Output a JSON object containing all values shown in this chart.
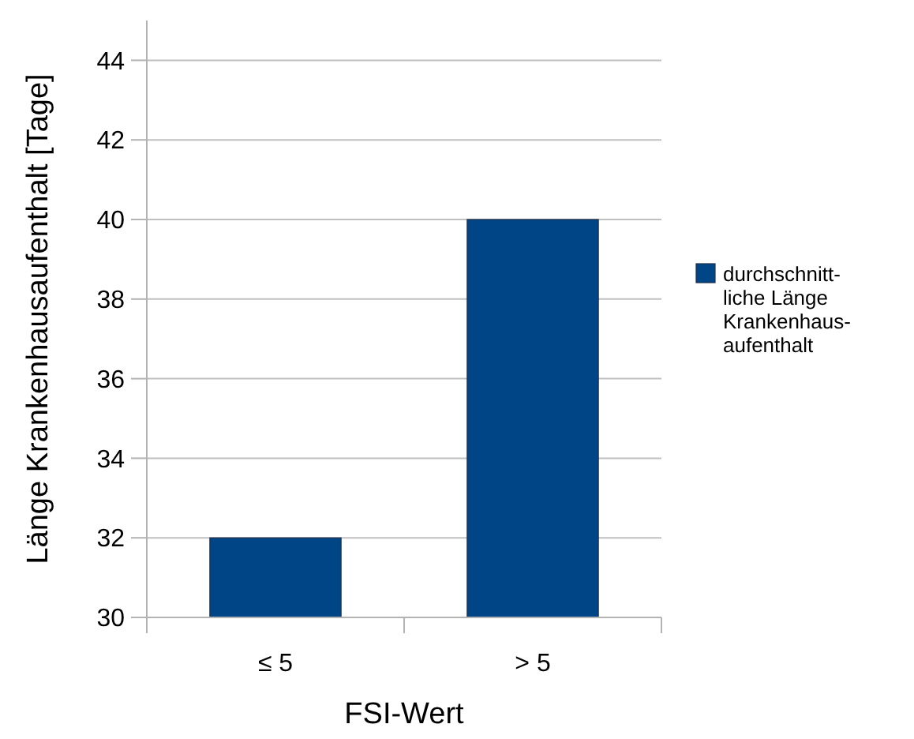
{
  "chart_data": {
    "type": "bar",
    "xlabel": "FSI-Wert",
    "ylabel": "Länge Krankenhausaufenthalt [Tage]",
    "categories": [
      "≤ 5",
      "> 5"
    ],
    "series": [
      {
        "name": "durchschnitt-liche Länge Krankenhaus-aufenthalt",
        "color": "#004586",
        "values": [
          32,
          40
        ]
      }
    ],
    "ylim": [
      30,
      45
    ],
    "yticks": [
      30,
      32,
      34,
      36,
      38,
      40,
      42,
      44
    ],
    "grid": "y",
    "legend": "right"
  }
}
